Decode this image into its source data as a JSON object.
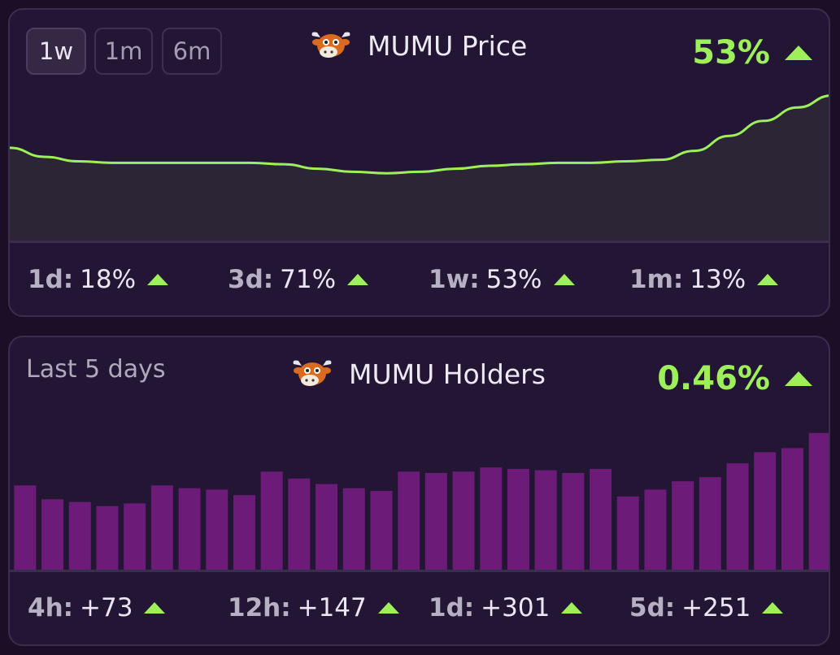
{
  "price_card": {
    "ranges": [
      {
        "label": "1w",
        "active": true
      },
      {
        "label": "1m",
        "active": false
      },
      {
        "label": "6m",
        "active": false
      }
    ],
    "title": "MUMU Price",
    "change": "53%",
    "stats": [
      {
        "key": "1d:",
        "value": "18%"
      },
      {
        "key": "3d:",
        "value": "71%"
      },
      {
        "key": "1w:",
        "value": "53%"
      },
      {
        "key": "1m:",
        "value": "13%"
      }
    ]
  },
  "holders_card": {
    "subtitle": "Last 5 days",
    "title": "MUMU Holders",
    "change": "0.46%",
    "stats": [
      {
        "key": "4h:",
        "value": "+73"
      },
      {
        "key": "12h:",
        "value": "+147"
      },
      {
        "key": "1d:",
        "value": "+301"
      },
      {
        "key": "5d:",
        "value": "+251"
      }
    ]
  },
  "colors": {
    "accent_green": "#9ef05a",
    "bar_purple": "#6d1b78",
    "area_fill": "#2b2536"
  },
  "chart_data": [
    {
      "type": "area",
      "x": [
        0,
        1,
        2,
        3,
        4,
        5,
        6,
        7,
        8,
        9,
        10,
        11,
        12,
        13,
        14,
        15,
        16,
        17,
        18,
        19,
        20,
        21,
        22,
        23,
        24
      ],
      "values": [
        62,
        56,
        53,
        52,
        52,
        52,
        52,
        52,
        51,
        48,
        46,
        45,
        46,
        48,
        50,
        51,
        52,
        52,
        53,
        54,
        60,
        70,
        80,
        89,
        97
      ],
      "ylim": [
        0,
        100
      ],
      "title": "",
      "xlabel": "",
      "ylabel": ""
    },
    {
      "type": "bar",
      "values": [
        61,
        51,
        49,
        46,
        48,
        61,
        59,
        58,
        54,
        71,
        66,
        62,
        59,
        57,
        71,
        70,
        71,
        74,
        73,
        72,
        70,
        73,
        53,
        58,
        64,
        67,
        77,
        85,
        88,
        99
      ],
      "ylim": [
        0,
        100
      ],
      "title": "",
      "xlabel": "",
      "ylabel": ""
    }
  ]
}
